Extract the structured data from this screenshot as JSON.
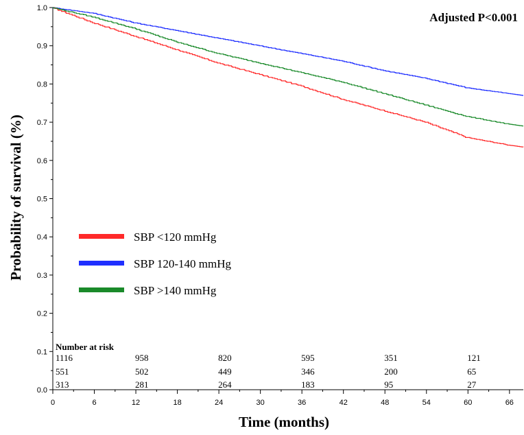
{
  "chart_data": {
    "type": "line",
    "subtype": "kaplan-meier step curve",
    "title": "",
    "annotation": "Adjusted P<0.001",
    "xlabel": "Time (months)",
    "ylabel": "Probability of survival (%)",
    "xlim": [
      0,
      68
    ],
    "ylim": [
      0,
      1.0
    ],
    "x_ticks": [
      0,
      6,
      12,
      18,
      24,
      30,
      36,
      42,
      48,
      54,
      60,
      66
    ],
    "y_ticks": [
      0.0,
      0.1,
      0.2,
      0.3,
      0.4,
      0.5,
      0.6,
      0.7,
      0.8,
      0.9,
      1.0
    ],
    "y_tick_labels": [
      "0.0",
      "0.1",
      "0.2",
      "0.3",
      "0.4",
      "0.5",
      "0.6",
      "0.7",
      "0.8",
      "0.9",
      "1.0"
    ],
    "grid": false,
    "legend_position": "left-middle",
    "series": [
      {
        "name": "SBP <120 mmHg",
        "color": "#ff2a2a",
        "x": [
          0,
          6,
          12,
          18,
          24,
          30,
          36,
          42,
          48,
          54,
          60,
          66,
          68
        ],
        "y": [
          1.0,
          0.96,
          0.925,
          0.89,
          0.855,
          0.825,
          0.795,
          0.76,
          0.73,
          0.7,
          0.66,
          0.64,
          0.635
        ]
      },
      {
        "name": "SBP 120-140 mmHg",
        "color": "#1f2fff",
        "x": [
          0,
          6,
          12,
          18,
          24,
          30,
          36,
          42,
          48,
          54,
          60,
          66,
          68
        ],
        "y": [
          1.0,
          0.985,
          0.96,
          0.94,
          0.92,
          0.9,
          0.88,
          0.86,
          0.835,
          0.815,
          0.79,
          0.775,
          0.77
        ]
      },
      {
        "name": "SBP >140 mmHg",
        "color": "#1a8a2a",
        "x": [
          0,
          6,
          12,
          18,
          24,
          30,
          36,
          42,
          48,
          54,
          60,
          66,
          68
        ],
        "y": [
          1.0,
          0.975,
          0.945,
          0.91,
          0.88,
          0.855,
          0.83,
          0.805,
          0.775,
          0.745,
          0.715,
          0.695,
          0.69
        ]
      }
    ],
    "risk_table": {
      "title": "Number at risk",
      "timepoints": [
        0,
        12,
        24,
        36,
        48,
        60
      ],
      "rows": [
        [
          "1116",
          "958",
          "820",
          "595",
          "351",
          "121"
        ],
        [
          "551",
          "502",
          "449",
          "346",
          "200",
          "65"
        ],
        [
          "313",
          "281",
          "264",
          "183",
          "95",
          "27"
        ]
      ]
    }
  }
}
